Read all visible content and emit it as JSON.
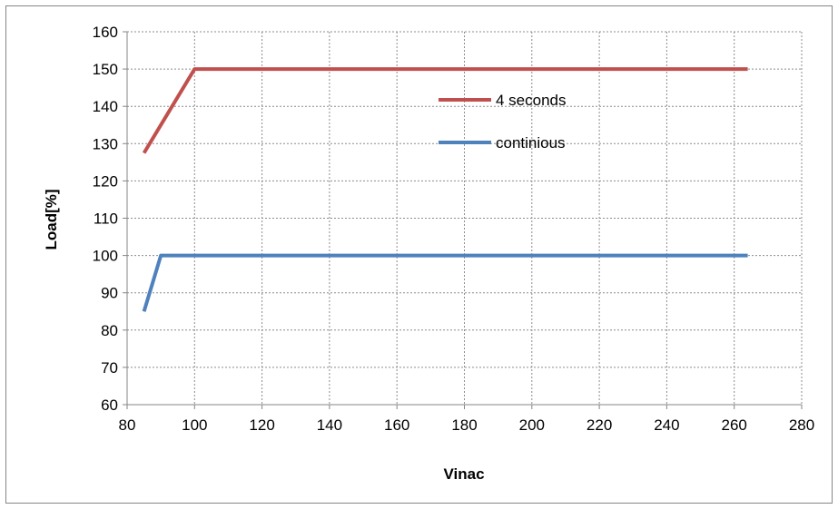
{
  "chart_data": {
    "type": "line",
    "xlabel": "Vinac",
    "ylabel": "Load[%]",
    "xlim": [
      80,
      280
    ],
    "ylim": [
      60,
      160
    ],
    "x_ticks": [
      80,
      100,
      120,
      140,
      160,
      180,
      200,
      220,
      240,
      260,
      280
    ],
    "y_ticks": [
      60,
      70,
      80,
      90,
      100,
      110,
      120,
      130,
      140,
      150,
      160
    ],
    "x_tick_labels": [
      "80",
      "100",
      "120",
      "140",
      "160",
      "180",
      "200",
      "220",
      "240",
      "260",
      "280"
    ],
    "y_tick_labels": [
      "60",
      "70",
      "80",
      "90",
      "100",
      "110",
      "120",
      "130",
      "140",
      "150",
      "160"
    ],
    "grid": true,
    "legend_position": "inside-upper-center",
    "series": [
      {
        "name": "4 seconds",
        "color": "#c0504d",
        "x": [
          85,
          100,
          264
        ],
        "y": [
          127.5,
          150,
          150
        ]
      },
      {
        "name": "continious",
        "color": "#4f81bd",
        "x": [
          85,
          90,
          264
        ],
        "y": [
          85,
          100,
          100
        ]
      }
    ]
  }
}
